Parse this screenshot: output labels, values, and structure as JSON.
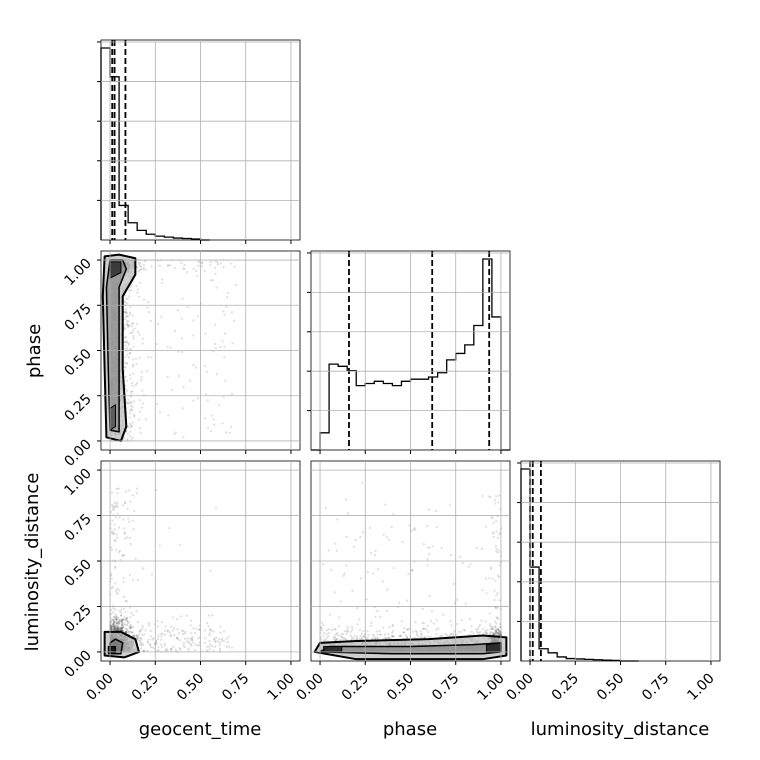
{
  "chart_data": {
    "type": "corner",
    "tick_labels": [
      "0.00",
      "0.25",
      "0.50",
      "0.75",
      "1.00"
    ],
    "parameters": [
      {
        "name": "geocent_time",
        "label": "geocent_time",
        "range": [
          -0.05,
          1.05
        ],
        "quantiles": [
          0.012,
          0.025,
          0.085
        ]
      },
      {
        "name": "phase",
        "label": "phase",
        "range": [
          -0.05,
          1.05
        ],
        "quantiles": [
          0.16,
          0.62,
          0.935
        ]
      },
      {
        "name": "luminosity_distance",
        "label": "luminosity_distance",
        "range": [
          -0.05,
          1.05
        ],
        "quantiles": [
          0.0,
          0.015,
          0.06
        ]
      }
    ],
    "histograms": [
      {
        "parameter": "geocent_time",
        "bin_edges": [
          -0.05,
          0.0,
          0.05,
          0.1,
          0.15,
          0.2,
          0.25,
          0.3,
          0.35,
          0.4,
          0.45,
          0.5,
          0.55
        ],
        "counts": [
          1.0,
          0.85,
          0.18,
          0.09,
          0.05,
          0.03,
          0.02,
          0.015,
          0.01,
          0.008,
          0.005,
          0.0
        ]
      },
      {
        "parameter": "phase",
        "bin_edges": [
          -0.05,
          0.0,
          0.05,
          0.1,
          0.15,
          0.2,
          0.25,
          0.3,
          0.35,
          0.4,
          0.45,
          0.5,
          0.55,
          0.6,
          0.65,
          0.7,
          0.75,
          0.8,
          0.85,
          0.9,
          0.95,
          1.0,
          1.05
        ],
        "counts": [
          0.0,
          0.08,
          0.4,
          0.39,
          0.37,
          0.3,
          0.31,
          0.32,
          0.31,
          0.3,
          0.32,
          0.33,
          0.33,
          0.34,
          0.36,
          0.42,
          0.45,
          0.49,
          0.58,
          0.89,
          0.62,
          0.0
        ]
      },
      {
        "parameter": "luminosity_distance",
        "bin_edges": [
          -0.05,
          0.0,
          0.05,
          0.1,
          0.15,
          0.2,
          0.25,
          0.3,
          0.35,
          0.4,
          0.45,
          0.5,
          0.55,
          0.6
        ],
        "counts": [
          0.94,
          0.46,
          0.06,
          0.04,
          0.02,
          0.012,
          0.01,
          0.008,
          0.006,
          0.004,
          0.003,
          0.0,
          0.0
        ]
      }
    ],
    "scatter_panels": [
      {
        "x": "geocent_time",
        "y": "phase"
      },
      {
        "x": "geocent_time",
        "y": "luminosity_distance"
      },
      {
        "x": "phase",
        "y": "luminosity_distance"
      }
    ],
    "grid": true
  }
}
